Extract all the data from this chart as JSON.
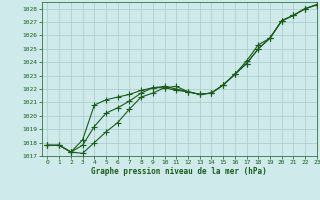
{
  "xlabel": "Graphe pression niveau de la mer (hPa)",
  "ylim": [
    1017,
    1028.5
  ],
  "xlim": [
    -0.5,
    23
  ],
  "yticks": [
    1017,
    1018,
    1019,
    1020,
    1021,
    1022,
    1023,
    1024,
    1025,
    1026,
    1027,
    1028
  ],
  "xticks": [
    0,
    1,
    2,
    3,
    4,
    5,
    6,
    7,
    8,
    9,
    10,
    11,
    12,
    13,
    14,
    15,
    16,
    17,
    18,
    19,
    20,
    21,
    22,
    23
  ],
  "bg_color": "#ceeaea",
  "grid_color": "#aacaca",
  "line_color": "#1a5c1a",
  "marker": "+",
  "marker_size": 4,
  "linewidth": 0.8,
  "series": [
    [
      1017.8,
      1017.8,
      1017.3,
      1017.2,
      1018.0,
      1018.8,
      1019.5,
      1020.5,
      1021.4,
      1021.7,
      1022.1,
      1022.2,
      1021.8,
      1021.6,
      1021.7,
      1022.3,
      1023.1,
      1023.9,
      1025.0,
      1025.8,
      1027.1,
      1027.5,
      1028.0,
      1028.3
    ],
    [
      1017.8,
      1017.8,
      1017.3,
      1017.8,
      1019.2,
      1020.2,
      1020.6,
      1021.1,
      1021.7,
      1022.1,
      1022.1,
      1021.9,
      1021.8,
      1021.6,
      1021.7,
      1022.3,
      1023.1,
      1023.9,
      1025.0,
      1025.8,
      1027.1,
      1027.5,
      1028.0,
      1028.3
    ],
    [
      1017.8,
      1017.8,
      1017.3,
      1018.2,
      1020.8,
      1021.2,
      1021.4,
      1021.6,
      1021.9,
      1022.1,
      1022.2,
      1022.0,
      1021.8,
      1021.6,
      1021.7,
      1022.3,
      1023.1,
      1024.1,
      1025.3,
      1025.8,
      1027.1,
      1027.5,
      1028.0,
      1028.3
    ]
  ]
}
